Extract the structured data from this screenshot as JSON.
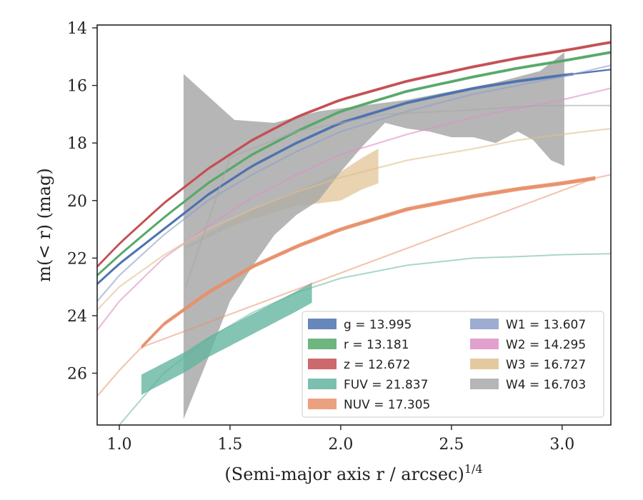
{
  "chart_data": {
    "type": "line",
    "xlabel": "(Semi-major axis r / arcsec)",
    "xlabel_sup": "1/4",
    "ylabel": "m(< r) (mag)",
    "xlim": [
      0.9,
      3.22
    ],
    "ylim": [
      27.8,
      13.9
    ],
    "y_inverted": true,
    "grid": false,
    "legend_position": "lower-right",
    "x_ticks": [
      1.0,
      1.5,
      2.0,
      2.5,
      3.0
    ],
    "x_tick_labels": [
      "1.0",
      "1.5",
      "2.0",
      "2.5",
      "3.0"
    ],
    "y_ticks": [
      14,
      16,
      18,
      20,
      22,
      24,
      26
    ],
    "y_tick_labels": [
      "14",
      "16",
      "18",
      "20",
      "22",
      "24",
      "26"
    ],
    "series": [
      {
        "key": "g",
        "label": "g = 13.995",
        "color": "#4c72b0",
        "x": [
          0.9,
          1.0,
          1.2,
          1.4,
          1.6,
          1.8,
          2.0,
          2.3,
          2.6,
          2.8,
          3.0,
          3.22
        ],
        "y": [
          22.9,
          22.2,
          21.0,
          19.8,
          18.8,
          18.0,
          17.3,
          16.6,
          16.1,
          15.85,
          15.65,
          15.45
        ],
        "band_start": 0.9,
        "band_end": 3.05,
        "band_half_width": 0.05
      },
      {
        "key": "r",
        "label": "r = 13.181",
        "color": "#55a868",
        "x": [
          0.9,
          1.0,
          1.2,
          1.4,
          1.6,
          1.8,
          2.0,
          2.3,
          2.6,
          2.8,
          3.0,
          3.22
        ],
        "y": [
          22.6,
          21.9,
          20.6,
          19.4,
          18.4,
          17.6,
          16.9,
          16.2,
          15.7,
          15.4,
          15.15,
          14.85
        ],
        "band_start": 0.9,
        "band_end": 3.22,
        "band_half_width": 0.05
      },
      {
        "key": "z",
        "label": "z = 12.672",
        "color": "#c44e52",
        "x": [
          0.9,
          1.0,
          1.2,
          1.4,
          1.6,
          1.8,
          2.0,
          2.3,
          2.6,
          2.8,
          3.0,
          3.22
        ],
        "y": [
          22.3,
          21.5,
          20.1,
          18.9,
          17.9,
          17.1,
          16.5,
          15.85,
          15.35,
          15.05,
          14.8,
          14.5
        ],
        "band_start": 0.9,
        "band_end": 3.22,
        "band_half_width": 0.05
      },
      {
        "key": "FUV",
        "label": "FUV = 21.837",
        "color": "#64b5a0",
        "x": [
          1.1,
          1.2,
          1.3,
          1.4,
          1.5,
          1.6,
          1.7,
          1.8,
          1.87
        ],
        "y": [
          26.4,
          26.0,
          25.6,
          25.1,
          24.7,
          24.3,
          23.9,
          23.5,
          23.2
        ],
        "band_start": 1.1,
        "band_end": 1.87,
        "band_half_width": 0.35,
        "extrap_x": [
          0.9,
          1.0,
          1.2,
          1.4,
          1.6,
          1.8,
          2.0,
          2.3,
          2.6,
          2.8,
          3.0,
          3.22
        ],
        "extrap_y": [
          28.9,
          27.8,
          26.0,
          24.8,
          23.9,
          23.2,
          22.7,
          22.25,
          22.0,
          21.95,
          21.88,
          21.85
        ]
      },
      {
        "key": "NUV",
        "label": "NUV = 17.305",
        "color": "#e8906a",
        "x": [
          1.1,
          1.2,
          1.4,
          1.6,
          1.8,
          2.0,
          2.3,
          2.6,
          2.8,
          3.0,
          3.15
        ],
        "y": [
          25.1,
          24.3,
          23.2,
          22.3,
          21.6,
          21.0,
          20.3,
          19.85,
          19.6,
          19.4,
          19.22
        ],
        "band_start": 1.1,
        "band_end": 3.15,
        "band_half_width": 0.07,
        "extrap_x": [
          0.9,
          1.0,
          1.1,
          3.15,
          3.22
        ],
        "extrap_y": [
          26.8,
          25.9,
          25.1,
          19.22,
          19.1
        ]
      },
      {
        "key": "W1",
        "label": "W1 = 13.607",
        "color": "#8c9ec9",
        "x": [
          0.9,
          1.0,
          1.2,
          1.4,
          1.6,
          1.8,
          2.0,
          2.3,
          2.6,
          2.8,
          3.0,
          3.22
        ],
        "y": [
          23.5,
          22.6,
          21.2,
          20.0,
          19.1,
          18.3,
          17.6,
          16.9,
          16.3,
          16.0,
          15.7,
          15.3
        ],
        "band_start": 0,
        "band_end": 0,
        "band_half_width": 0
      },
      {
        "key": "W2",
        "label": "W2 = 14.295",
        "color": "#dd8fc6",
        "x": [
          0.9,
          1.0,
          1.2,
          1.4,
          1.6,
          1.8,
          2.0,
          2.3,
          2.6,
          2.8,
          3.0,
          3.22
        ],
        "y": [
          24.5,
          23.5,
          22.0,
          20.9,
          19.9,
          19.1,
          18.4,
          17.7,
          17.1,
          16.8,
          16.5,
          16.1
        ],
        "band_start": 0,
        "band_end": 0,
        "band_half_width": 0
      },
      {
        "key": "W3",
        "label": "W3 = 16.727",
        "color": "#dfc08e",
        "x": [
          0.9,
          1.0,
          1.2,
          1.4,
          1.6,
          1.8,
          2.0,
          2.3,
          2.6,
          2.8,
          3.0,
          3.22
        ],
        "y": [
          23.8,
          23.0,
          21.9,
          21.0,
          20.3,
          19.7,
          19.2,
          18.6,
          18.2,
          17.9,
          17.7,
          17.5
        ],
        "band_start": 0,
        "band_end": 0,
        "band_half_width": 0,
        "patch_top_x": [
          1.3,
          1.5,
          1.7,
          1.85,
          2.0,
          2.1,
          2.17
        ],
        "patch_top_y": [
          21.6,
          20.7,
          20.0,
          19.5,
          19.0,
          18.5,
          18.2
        ],
        "patch_bottom_x": [
          2.17,
          2.1,
          2.0,
          1.9,
          1.8,
          1.7,
          1.5,
          1.3
        ],
        "patch_bottom_y": [
          19.4,
          19.6,
          20.0,
          20.1,
          20.2,
          20.4,
          20.9,
          21.7
        ]
      },
      {
        "key": "W4",
        "label": "W4 = 16.703",
        "color": "#a9a9a9",
        "x": [
          1.3,
          1.5,
          1.8,
          2.2,
          2.6,
          2.9,
          3.22
        ],
        "y": [
          23.0,
          18.5,
          17.6,
          17.0,
          16.85,
          16.7,
          16.7
        ],
        "band_start": 0,
        "band_end": 0,
        "band_half_width": 0,
        "patch_top_x": [
          1.29,
          1.52,
          1.7,
          1.9,
          2.1,
          2.3,
          2.5,
          2.7,
          2.9,
          3.01
        ],
        "patch_top_y": [
          15.6,
          17.2,
          17.3,
          16.9,
          16.7,
          16.5,
          16.2,
          15.9,
          15.5,
          14.85
        ],
        "patch_bottom_x": [
          3.01,
          2.95,
          2.87,
          2.8,
          2.7,
          2.6,
          2.5,
          2.4,
          2.3,
          2.2,
          2.1,
          2.0,
          1.9,
          1.8,
          1.7,
          1.6,
          1.5,
          1.4,
          1.29,
          1.29
        ],
        "patch_bottom_y": [
          18.8,
          18.6,
          17.9,
          17.6,
          18.0,
          17.8,
          17.8,
          17.6,
          17.5,
          17.3,
          18.1,
          19.0,
          20.0,
          20.5,
          21.2,
          22.3,
          23.5,
          25.5,
          27.6,
          27.6
        ]
      }
    ],
    "legend_columns": [
      [
        "g",
        "r",
        "z",
        "FUV",
        "NUV"
      ],
      [
        "W1",
        "W2",
        "W3",
        "W4"
      ]
    ]
  }
}
